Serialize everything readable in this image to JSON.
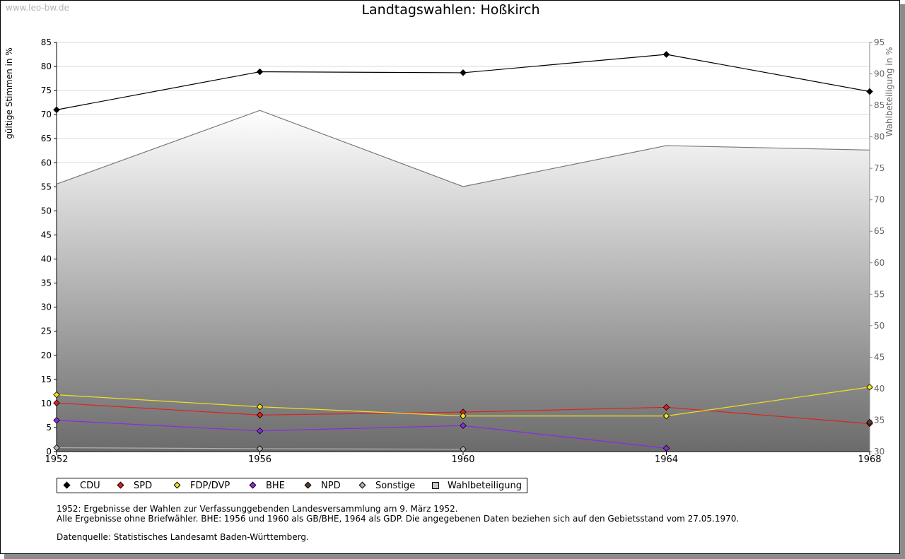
{
  "watermark": "www.leo-bw.de",
  "chart_data": {
    "type": "line",
    "title": "Landtagswahlen: Hoßkirch",
    "x": [
      "1952",
      "1956",
      "1960",
      "1964",
      "1968"
    ],
    "ylabel": "gültige Stimmen in %",
    "ylabel_right": "Wahlbeteiligung in %",
    "ylim": [
      0,
      85
    ],
    "ylim_right": [
      30,
      95
    ],
    "yticks": [
      0,
      5,
      10,
      15,
      20,
      25,
      30,
      35,
      40,
      45,
      50,
      55,
      60,
      65,
      70,
      75,
      80,
      85
    ],
    "yticks_right": [
      30,
      35,
      40,
      45,
      50,
      55,
      60,
      65,
      70,
      75,
      80,
      85,
      90,
      95
    ],
    "grid": true,
    "area": {
      "name": "Wahlbeteiligung",
      "axis": "right",
      "values": [
        72.5,
        84.2,
        72.1,
        78.6,
        77.9
      ]
    },
    "series": [
      {
        "name": "CDU",
        "color": "#000000",
        "values": [
          71.0,
          78.9,
          78.7,
          82.5,
          74.8
        ]
      },
      {
        "name": "SPD",
        "color": "#e02020",
        "values": [
          10.1,
          7.6,
          8.2,
          9.2,
          5.8
        ]
      },
      {
        "name": "FDP/DVP",
        "color": "#f0e020",
        "values": [
          11.8,
          9.3,
          7.4,
          7.4,
          13.4
        ]
      },
      {
        "name": "BHE",
        "color": "#8a2be2",
        "values": [
          6.5,
          4.3,
          5.4,
          0.7,
          null
        ]
      },
      {
        "name": "NPD",
        "color": "#5a3a28",
        "values": [
          null,
          null,
          null,
          null,
          6.1
        ]
      },
      {
        "name": "Sonstige",
        "color": "#b0b0b0",
        "values": [
          0.8,
          0.6,
          0.5,
          null,
          null
        ]
      }
    ],
    "legend": {
      "position": "bottom-left",
      "items": [
        {
          "label": "CDU",
          "color": "#000000",
          "shape": "diamond"
        },
        {
          "label": "SPD",
          "color": "#e02020",
          "shape": "diamond"
        },
        {
          "label": "FDP/DVP",
          "color": "#f0e020",
          "shape": "diamond"
        },
        {
          "label": "BHE",
          "color": "#8a2be2",
          "shape": "diamond"
        },
        {
          "label": "NPD",
          "color": "#5a3a28",
          "shape": "diamond"
        },
        {
          "label": "Sonstige",
          "color": "#b0b0b0",
          "shape": "diamond"
        },
        {
          "label": "Wahlbeteiligung",
          "color": "#c8c8c8",
          "shape": "square"
        }
      ]
    }
  },
  "notes": {
    "line1": "1952: Ergebnisse der Wahlen zur Verfassunggebenden Landesversammlung am 9. März 1952.",
    "line2": "Alle Ergebnisse ohne Briefwähler. BHE: 1956 und 1960 als GB/BHE, 1964 als GDP. Die angegebenen Daten beziehen sich auf den Gebietsstand vom 27.05.1970.",
    "source": "Datenquelle: Statistisches Landesamt Baden-Württemberg."
  }
}
